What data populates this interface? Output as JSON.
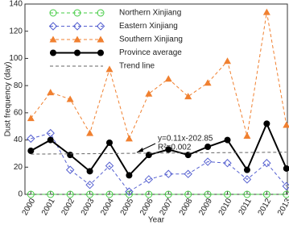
{
  "chart_data": {
    "type": "line",
    "x": [
      2000,
      2001,
      2002,
      2003,
      2004,
      2005,
      2006,
      2007,
      2008,
      2009,
      2010,
      2011,
      2012,
      2013
    ],
    "xlim": [
      1999.7,
      2013.05
    ],
    "xticks": [
      2000,
      2001,
      2002,
      2003,
      2004,
      2005,
      2006,
      2007,
      2008,
      2009,
      2010,
      2011,
      2012,
      2013
    ],
    "ylim": [
      0,
      140
    ],
    "yticks": [
      0,
      20,
      40,
      60,
      80,
      100,
      120,
      140
    ],
    "xlabel": "Year",
    "ylabel": "Dust frequency  (day)",
    "legend": "upper left",
    "annotations": [
      "y=0.11x-202.85",
      "R²=0.002"
    ],
    "series": [
      {
        "name": "Northern Xinjiang",
        "color": "#44cc44",
        "marker": "circle",
        "dashed": true,
        "values": [
          0,
          0,
          0,
          0,
          0,
          0,
          0,
          0,
          0,
          0,
          0,
          0,
          0,
          0
        ]
      },
      {
        "name": "Eastern Xinjiang",
        "color": "#5560d0",
        "marker": "diamond",
        "dashed": true,
        "values": [
          41,
          45,
          18,
          7,
          21,
          2,
          11,
          15,
          15,
          24,
          23,
          11,
          23,
          6
        ]
      },
      {
        "name": "Southern Xinjiang",
        "color": "#f08030",
        "marker": "triangle",
        "dashed": true,
        "values": [
          56,
          75,
          70,
          45,
          92,
          41,
          74,
          85,
          72,
          82,
          98,
          43,
          134,
          51
        ]
      },
      {
        "name": "Province average",
        "color": "#000000",
        "marker": "filled-circle",
        "dashed": false,
        "values": [
          32,
          40,
          29,
          17,
          38,
          14,
          29,
          33,
          29,
          35,
          40,
          18,
          52,
          19
        ]
      },
      {
        "name": "Trend line",
        "color": "#666666",
        "marker": "none",
        "dashed": true,
        "values": [
          29.6,
          29.7,
          29.8,
          29.9,
          30.0,
          30.2,
          30.3,
          30.4,
          30.5,
          30.6,
          30.7,
          30.8,
          30.9,
          31.0
        ]
      }
    ]
  }
}
